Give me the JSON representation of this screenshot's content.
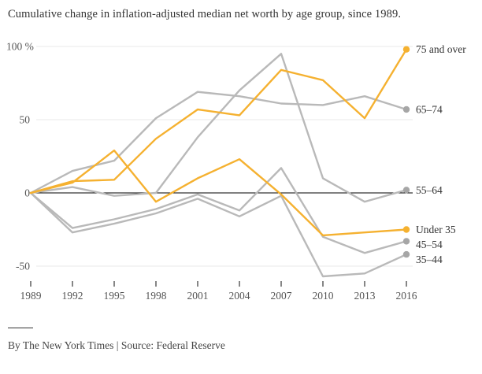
{
  "title": "Cumulative change in inflation-adjusted median net worth by age group, since 1989.",
  "footer": {
    "byline": "By The New York Times | Source: Federal Reserve"
  },
  "colors": {
    "gold": "#F5B130",
    "gray": "#B9B9B9",
    "gold_dot": "#F5B130",
    "gray_dot": "#A6A6A6",
    "grid": "#E8E8E8",
    "zero_line": "#000000",
    "axis_text": "#555555",
    "legend_text": "#333333",
    "tick_mark": "#444444"
  },
  "chart_data": {
    "type": "line",
    "title": "Cumulative change in inflation-adjusted median net worth by age group, since 1989.",
    "x": [
      1989,
      1992,
      1995,
      1998,
      2001,
      2004,
      2007,
      2010,
      2013,
      2016
    ],
    "x_tick_labels": [
      "1989",
      "1992",
      "1995",
      "1998",
      "2001",
      "2004",
      "2007",
      "2010",
      "2013",
      "2016"
    ],
    "y_axis": {
      "unit": "%",
      "tick_values": [
        100,
        50,
        0,
        -50
      ],
      "tick_labels": [
        "100 %",
        "50",
        "0",
        "-50"
      ],
      "ylim": [
        -62,
        105
      ],
      "zero_line": true,
      "grid": "horizontal"
    },
    "legend_position": "right-end-labels",
    "series": [
      {
        "name": "35–44",
        "color_role": "gray",
        "values": [
          0,
          -27,
          -21,
          -14,
          -4,
          -16,
          -2,
          -57,
          -55,
          -42
        ]
      },
      {
        "name": "45–54",
        "color_role": "gray",
        "values": [
          0,
          -24,
          -18,
          -11,
          -1,
          -12,
          17,
          -30,
          -41,
          -33
        ]
      },
      {
        "name": "55–64",
        "color_role": "gray",
        "values": [
          0,
          4,
          -2,
          0,
          38,
          70,
          95,
          10,
          -6,
          2
        ]
      },
      {
        "name": "65–74",
        "color_role": "gray",
        "values": [
          0,
          15,
          22,
          51,
          69,
          66,
          61,
          60,
          66,
          57
        ]
      },
      {
        "name": "Under 35",
        "color_role": "gold",
        "values": [
          0,
          7,
          29,
          -6,
          10,
          23,
          -1,
          -29,
          -27,
          -25
        ]
      },
      {
        "name": "75 and over",
        "color_role": "gold",
        "values": [
          0,
          8,
          9,
          37,
          57,
          53,
          84,
          77,
          51,
          98
        ]
      }
    ]
  }
}
